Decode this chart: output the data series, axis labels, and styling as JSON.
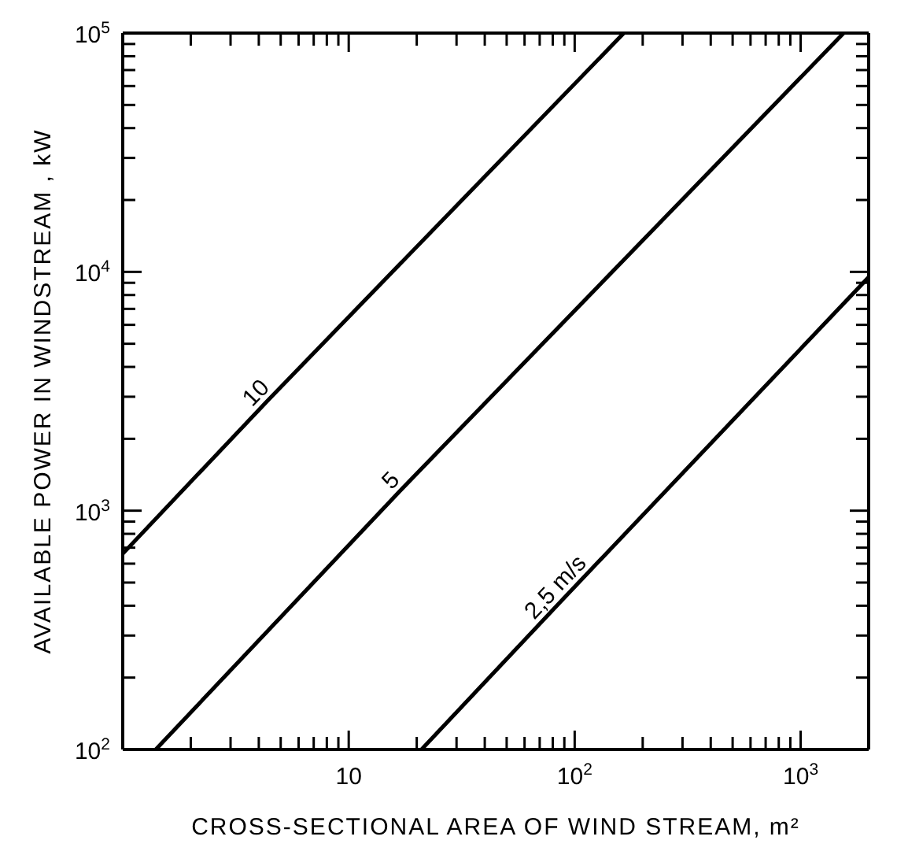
{
  "chart_data": {
    "type": "line",
    "xlabel": "CROSS-SECTIONAL AREA OF WIND STREAM, m²",
    "ylabel": "AVAILABLE POWER IN WINDSTREAM , kW",
    "log": "xy",
    "marker": "none",
    "line_style": "solid",
    "xlim": [
      1,
      2000
    ],
    "ylim": [
      100,
      100000
    ],
    "xticks": [
      {
        "value": 2,
        "label": null
      },
      {
        "value": 3,
        "label": null
      },
      {
        "value": 4,
        "label": null
      },
      {
        "value": 5,
        "label": null
      },
      {
        "value": 6,
        "label": null
      },
      {
        "value": 7,
        "label": null
      },
      {
        "value": 8,
        "label": null
      },
      {
        "value": 9,
        "label": null
      },
      {
        "value": 10,
        "label": "10"
      },
      {
        "value": 20,
        "label": null
      },
      {
        "value": 30,
        "label": null
      },
      {
        "value": 40,
        "label": null
      },
      {
        "value": 50,
        "label": null
      },
      {
        "value": 60,
        "label": null
      },
      {
        "value": 70,
        "label": null
      },
      {
        "value": 80,
        "label": null
      },
      {
        "value": 90,
        "label": null
      },
      {
        "value": 100,
        "label": "10$^{2}$"
      },
      {
        "value": 200,
        "label": null
      },
      {
        "value": 300,
        "label": null
      },
      {
        "value": 400,
        "label": null
      },
      {
        "value": 500,
        "label": null
      },
      {
        "value": 600,
        "label": null
      },
      {
        "value": 700,
        "label": null
      },
      {
        "value": 800,
        "label": null
      },
      {
        "value": 900,
        "label": null
      },
      {
        "value": 1000,
        "label": "10$^{3}$"
      }
    ],
    "yticks": [
      {
        "value": 100,
        "label": "10$^{2}$"
      },
      {
        "value": 200,
        "label": null
      },
      {
        "value": 300,
        "label": null
      },
      {
        "value": 400,
        "label": null
      },
      {
        "value": 500,
        "label": null
      },
      {
        "value": 600,
        "label": null
      },
      {
        "value": 700,
        "label": null
      },
      {
        "value": 800,
        "label": null
      },
      {
        "value": 900,
        "label": null
      },
      {
        "value": 1000,
        "label": "10$^{3}$"
      },
      {
        "value": 2000,
        "label": null
      },
      {
        "value": 3000,
        "label": null
      },
      {
        "value": 4000,
        "label": null
      },
      {
        "value": 5000,
        "label": null
      },
      {
        "value": 6000,
        "label": null
      },
      {
        "value": 7000,
        "label": null
      },
      {
        "value": 8000,
        "label": null
      },
      {
        "value": 9000,
        "label": null
      },
      {
        "value": 10000,
        "label": "10$^{4}$"
      },
      {
        "value": 20000,
        "label": null
      },
      {
        "value": 30000,
        "label": null
      },
      {
        "value": 40000,
        "label": null
      },
      {
        "value": 50000,
        "label": null
      },
      {
        "value": 60000,
        "label": null
      },
      {
        "value": 70000,
        "label": null
      },
      {
        "value": 80000,
        "label": null
      },
      {
        "value": 90000,
        "label": null
      },
      {
        "value": 100000,
        "label": "10$^{5}$"
      }
    ],
    "series": [
      {
        "name": "10",
        "color": "#000000",
        "x": [
          1,
          4.3,
          165
        ],
        "values": [
          660,
          2840,
          100000
        ]
      },
      {
        "name": "5",
        "color": "#000000",
        "x": [
          1.4,
          17,
          1550
        ],
        "values": [
          100,
          1220,
          100000
        ]
      },
      {
        "name": "2,5 m/s",
        "color": "#000000",
        "x": [
          21,
          91,
          2000
        ],
        "values": [
          100,
          437,
          9500
        ]
      }
    ]
  }
}
